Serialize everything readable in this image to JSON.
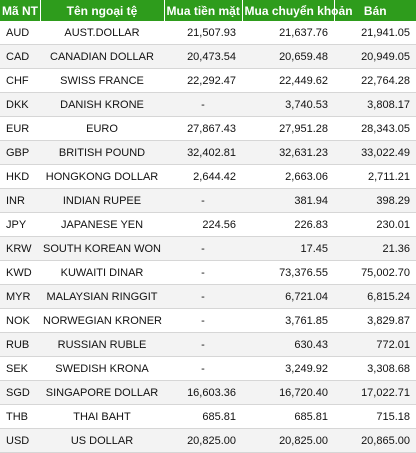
{
  "table": {
    "headers": [
      "Mã NT",
      "Tên ngoại tệ",
      "Mua tiền mặt",
      "Mua chuyển khoản",
      "Bán"
    ],
    "rows": [
      {
        "code": "AUD",
        "name": "AUST.DOLLAR",
        "cash": "21,507.93",
        "transfer": "21,637.76",
        "sell": "21,941.05"
      },
      {
        "code": "CAD",
        "name": "CANADIAN DOLLAR",
        "cash": "20,473.54",
        "transfer": "20,659.48",
        "sell": "20,949.05"
      },
      {
        "code": "CHF",
        "name": "SWISS FRANCE",
        "cash": "22,292.47",
        "transfer": "22,449.62",
        "sell": "22,764.28"
      },
      {
        "code": "DKK",
        "name": "DANISH KRONE",
        "cash": "-",
        "transfer": "3,740.53",
        "sell": "3,808.17"
      },
      {
        "code": "EUR",
        "name": "EURO",
        "cash": "27,867.43",
        "transfer": "27,951.28",
        "sell": "28,343.05"
      },
      {
        "code": "GBP",
        "name": "BRITISH POUND",
        "cash": "32,402.81",
        "transfer": "32,631.23",
        "sell": "33,022.49"
      },
      {
        "code": "HKD",
        "name": "HONGKONG DOLLAR",
        "cash": "2,644.42",
        "transfer": "2,663.06",
        "sell": "2,711.21"
      },
      {
        "code": "INR",
        "name": "INDIAN RUPEE",
        "cash": "-",
        "transfer": "381.94",
        "sell": "398.29"
      },
      {
        "code": "JPY",
        "name": "JAPANESE YEN",
        "cash": "224.56",
        "transfer": "226.83",
        "sell": "230.01"
      },
      {
        "code": "KRW",
        "name": "SOUTH KOREAN WON",
        "cash": "-",
        "transfer": "17.45",
        "sell": "21.36"
      },
      {
        "code": "KWD",
        "name": "KUWAITI DINAR",
        "cash": "-",
        "transfer": "73,376.55",
        "sell": "75,002.70"
      },
      {
        "code": "MYR",
        "name": "MALAYSIAN RINGGIT",
        "cash": "-",
        "transfer": "6,721.04",
        "sell": "6,815.24"
      },
      {
        "code": "NOK",
        "name": "NORWEGIAN KRONER",
        "cash": "-",
        "transfer": "3,761.85",
        "sell": "3,829.87"
      },
      {
        "code": "RUB",
        "name": "RUSSIAN RUBLE",
        "cash": "-",
        "transfer": "630.43",
        "sell": "772.01"
      },
      {
        "code": "SEK",
        "name": "SWEDISH KRONA",
        "cash": "-",
        "transfer": "3,249.92",
        "sell": "3,308.68"
      },
      {
        "code": "SGD",
        "name": "SINGAPORE DOLLAR",
        "cash": "16,603.36",
        "transfer": "16,720.40",
        "sell": "17,022.71"
      },
      {
        "code": "THB",
        "name": "THAI BAHT",
        "cash": "685.81",
        "transfer": "685.81",
        "sell": "715.18"
      },
      {
        "code": "USD",
        "name": "US DOLLAR",
        "cash": "20,825.00",
        "transfer": "20,825.00",
        "sell": "20,865.00"
      }
    ]
  },
  "colors": {
    "header_bg": "#2e9c1c",
    "header_text": "#ffffff",
    "row_alt_bg": "#f3f3f3",
    "row_border": "#d6d6d6"
  }
}
